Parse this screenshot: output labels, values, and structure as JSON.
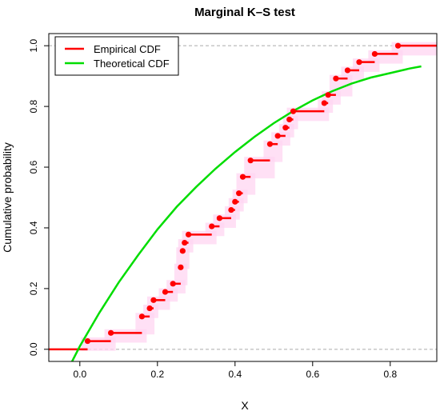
{
  "chart_data": {
    "type": "line",
    "title": "Marginal K–S test",
    "xlabel": "X",
    "ylabel": "Cumulative probability",
    "xlim": [
      -0.08,
      0.92
    ],
    "ylim": [
      -0.04,
      1.04
    ],
    "xticks": [
      {
        "v": 0.0,
        "label": "0.0"
      },
      {
        "v": 0.2,
        "label": "0.2"
      },
      {
        "v": 0.4,
        "label": "0.4"
      },
      {
        "v": 0.6,
        "label": "0.6"
      },
      {
        "v": 0.8,
        "label": "0.8"
      }
    ],
    "yticks": [
      {
        "v": 0.0,
        "label": "0.0"
      },
      {
        "v": 0.2,
        "label": "0.2"
      },
      {
        "v": 0.4,
        "label": "0.4"
      },
      {
        "v": 0.6,
        "label": "0.6"
      },
      {
        "v": 0.8,
        "label": "0.8"
      },
      {
        "v": 1.0,
        "label": "1.0"
      }
    ],
    "reference_lines_y": [
      0,
      1
    ],
    "legend": {
      "position": "top-left",
      "entries": [
        {
          "label": "Empirical CDF",
          "color": "#ff0000"
        },
        {
          "label": "Theoretical CDF",
          "color": "#00dd00"
        }
      ]
    },
    "series": [
      {
        "name": "Empirical CDF",
        "kind": "step",
        "color": "#ff0000",
        "points": [
          {
            "x": 0.02,
            "y": 0.027
          },
          {
            "x": 0.08,
            "y": 0.054
          },
          {
            "x": 0.16,
            "y": 0.108
          },
          {
            "x": 0.18,
            "y": 0.135
          },
          {
            "x": 0.19,
            "y": 0.162
          },
          {
            "x": 0.22,
            "y": 0.189
          },
          {
            "x": 0.24,
            "y": 0.216
          },
          {
            "x": 0.26,
            "y": 0.27
          },
          {
            "x": 0.265,
            "y": 0.324
          },
          {
            "x": 0.27,
            "y": 0.351
          },
          {
            "x": 0.28,
            "y": 0.378
          },
          {
            "x": 0.34,
            "y": 0.405
          },
          {
            "x": 0.36,
            "y": 0.432
          },
          {
            "x": 0.39,
            "y": 0.459
          },
          {
            "x": 0.4,
            "y": 0.486
          },
          {
            "x": 0.41,
            "y": 0.514
          },
          {
            "x": 0.42,
            "y": 0.568
          },
          {
            "x": 0.44,
            "y": 0.622
          },
          {
            "x": 0.49,
            "y": 0.676
          },
          {
            "x": 0.51,
            "y": 0.703
          },
          {
            "x": 0.53,
            "y": 0.73
          },
          {
            "x": 0.54,
            "y": 0.757
          },
          {
            "x": 0.55,
            "y": 0.784
          },
          {
            "x": 0.63,
            "y": 0.811
          },
          {
            "x": 0.64,
            "y": 0.838
          },
          {
            "x": 0.66,
            "y": 0.892
          },
          {
            "x": 0.69,
            "y": 0.919
          },
          {
            "x": 0.72,
            "y": 0.946
          },
          {
            "x": 0.76,
            "y": 0.973
          },
          {
            "x": 0.82,
            "y": 1.0
          }
        ]
      },
      {
        "name": "Theoretical CDF",
        "kind": "curve",
        "color": "#00dd00",
        "x": [
          -0.02,
          0.0,
          0.05,
          0.1,
          0.15,
          0.2,
          0.25,
          0.3,
          0.35,
          0.4,
          0.45,
          0.5,
          0.55,
          0.6,
          0.65,
          0.7,
          0.75,
          0.8,
          0.85,
          0.88
        ],
        "y": [
          -0.04,
          0.01,
          0.12,
          0.22,
          0.31,
          0.395,
          0.47,
          0.535,
          0.595,
          0.65,
          0.7,
          0.745,
          0.785,
          0.82,
          0.85,
          0.875,
          0.895,
          0.91,
          0.925,
          0.932
        ]
      }
    ]
  }
}
